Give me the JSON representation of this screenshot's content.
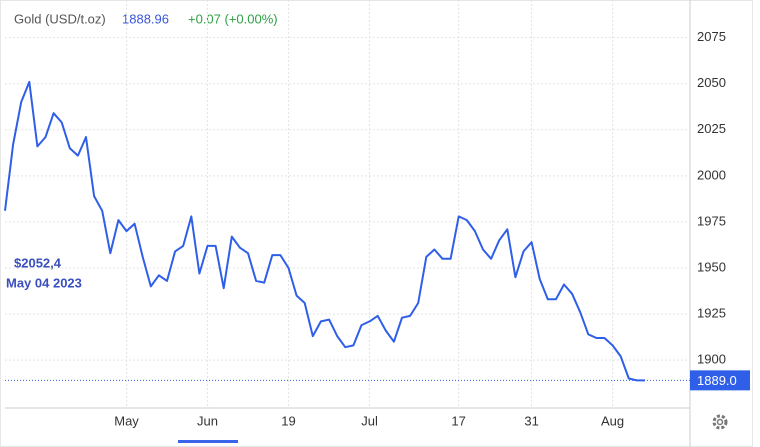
{
  "chart_data": {
    "type": "line",
    "symbol": "Gold (USD/t.oz)",
    "price": "1888.96",
    "change": "+0.07 (+0.00%)",
    "annotation_value": "$2052,4",
    "annotation_date": "May 04 2023",
    "categories": [
      null,
      null,
      null,
      null,
      null,
      null,
      null,
      null,
      null,
      null,
      null,
      null,
      null,
      null,
      null,
      "May",
      null,
      null,
      null,
      null,
      null,
      null,
      null,
      null,
      null,
      "Jun",
      null,
      null,
      null,
      null,
      null,
      null,
      null,
      null,
      null,
      "19",
      null,
      null,
      null,
      null,
      null,
      null,
      null,
      null,
      null,
      "Jul",
      null,
      null,
      null,
      null,
      null,
      null,
      null,
      null,
      null,
      null,
      "17",
      null,
      null,
      null,
      null,
      null,
      null,
      null,
      null,
      "31",
      null,
      null,
      null,
      null,
      null,
      null,
      null,
      null,
      null,
      "Aug",
      null,
      null,
      null,
      null
    ],
    "series": [
      {
        "name": "Gold",
        "color": "#2f5fe8",
        "values": [
          1981,
          2017,
          2040,
          2051,
          2016,
          2021,
          2034,
          2029,
          2015,
          2011,
          2021,
          1989,
          1981,
          1958,
          1976,
          1970,
          1974,
          1956,
          1940,
          1946,
          1943,
          1959,
          1962,
          1978,
          1947,
          1962,
          1962,
          1939,
          1967,
          1961,
          1958,
          1943,
          1942,
          1957,
          1957,
          1950,
          1935,
          1931,
          1913,
          1921,
          1922,
          1913,
          1907,
          1908,
          1919,
          1921,
          1924,
          1916,
          1910,
          1923,
          1924,
          1931,
          1956,
          1960,
          1955,
          1955,
          1978,
          1976,
          1970,
          1960,
          1955,
          1965,
          1971,
          1945,
          1959,
          1964,
          1944,
          1933,
          1933,
          1941,
          1936,
          1926,
          1914,
          1912,
          1912,
          1908,
          1902,
          1890,
          1889,
          1889
        ]
      }
    ],
    "ylim": [
      1874,
      2090
    ],
    "yticks": [
      1900,
      1925,
      1950,
      1975,
      2000,
      2025,
      2050,
      2075
    ],
    "last_price": {
      "value": 1889,
      "label": "1889.0"
    },
    "grid": true
  }
}
